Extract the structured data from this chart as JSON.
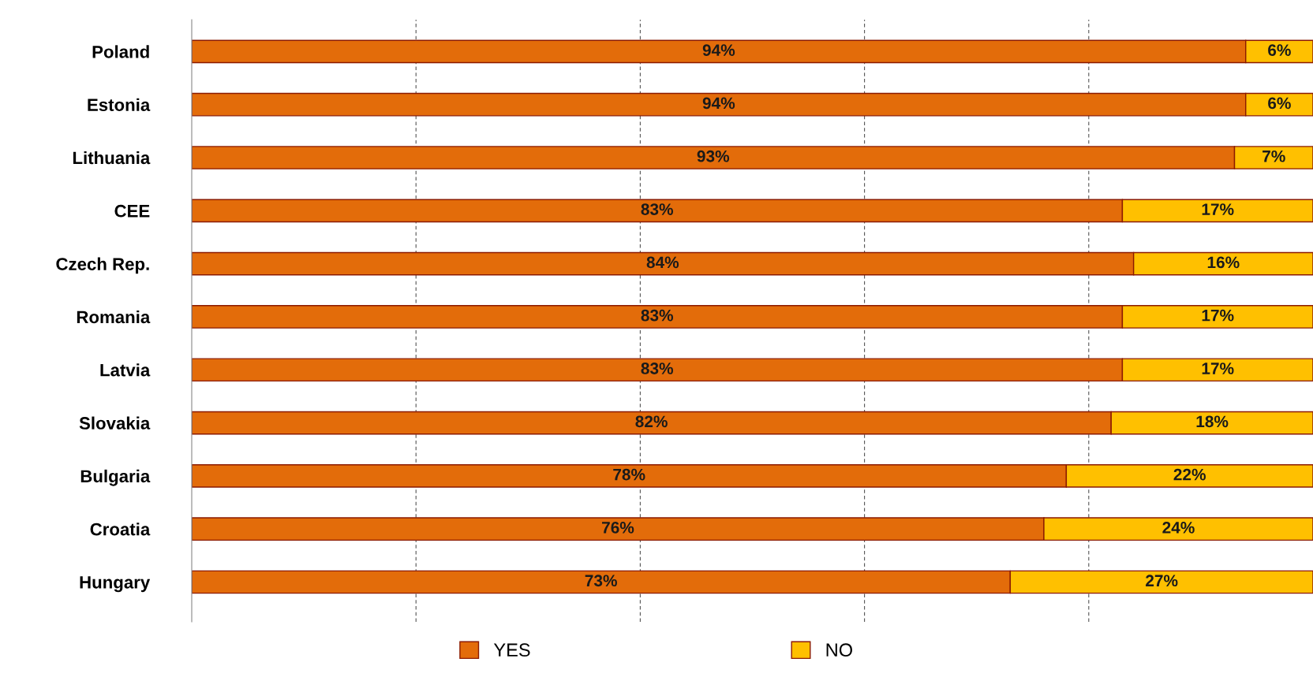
{
  "chart_data": {
    "type": "bar",
    "orientation": "horizontal",
    "stacked": true,
    "categories": [
      "Poland",
      "Estonia",
      "Lithuania",
      "CEE",
      "Czech Rep.",
      "Romania",
      "Latvia",
      "Slovakia",
      "Bulgaria",
      "Croatia",
      "Hungary"
    ],
    "series": [
      {
        "name": "YES",
        "color": "#e36c0a",
        "values": [
          94,
          94,
          93,
          83,
          84,
          83,
          83,
          82,
          78,
          76,
          73
        ],
        "value_labels": [
          "94%",
          "94%",
          "93%",
          "83%",
          "84%",
          "83%",
          "83%",
          "82%",
          "78%",
          "76%",
          "73%"
        ]
      },
      {
        "name": "NO",
        "color": "#ffc000",
        "values": [
          6,
          6,
          7,
          17,
          16,
          17,
          17,
          18,
          22,
          24,
          27
        ],
        "value_labels": [
          "6%",
          "6%",
          "7%",
          "17%",
          "16%",
          "17%",
          "17%",
          "18%",
          "22%",
          "24%",
          "27%"
        ]
      }
    ],
    "xlim": [
      0,
      100
    ],
    "xticks": [
      {
        "value": 20,
        "label": null
      },
      {
        "value": 40,
        "label": null
      },
      {
        "value": 60,
        "label": null
      },
      {
        "value": 80,
        "label": null
      }
    ],
    "tick_labels": "y",
    "grid": "x",
    "legend": "bottom"
  }
}
